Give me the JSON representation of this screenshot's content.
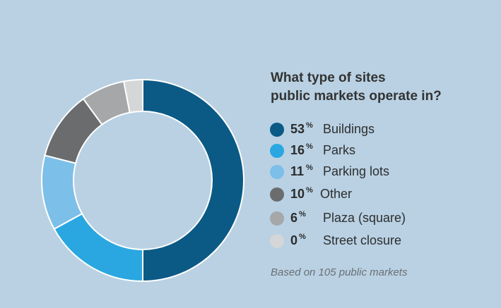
{
  "chart_data": {
    "type": "pie",
    "title_lines": [
      "What type of sites",
      "public markets operate in?"
    ],
    "categories": [
      "Buildings",
      "Parks",
      "Parking lots",
      "Other",
      "Plaza (square)",
      "Street closure"
    ],
    "percent_labels": [
      "53",
      "16",
      "11",
      "10",
      "6",
      "0"
    ],
    "values": [
      53,
      16,
      11,
      10,
      6,
      0
    ],
    "percent_sign": "%",
    "colors": [
      "#0b5a86",
      "#2aa7e0",
      "#7cbfe8",
      "#6a6c6e",
      "#a5a7a9",
      "#d5d6d7"
    ],
    "note": "Based on 105 public markets",
    "legend_position": "right"
  }
}
